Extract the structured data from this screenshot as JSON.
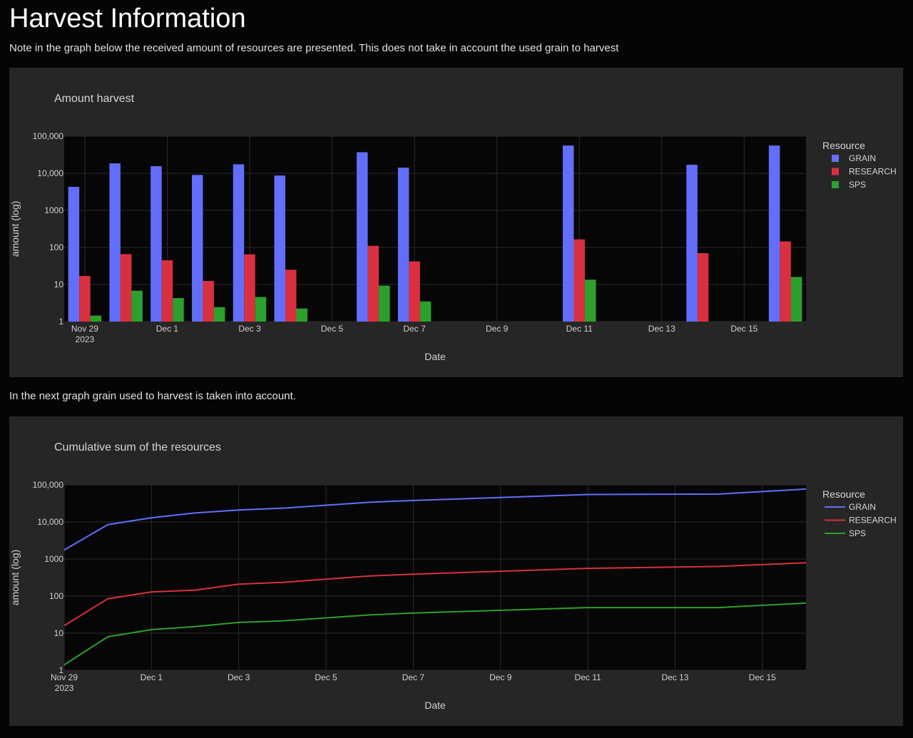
{
  "page": {
    "title": "Harvest Information",
    "note_1": "Note in the graph below the received amount of resources are presented. This does not take in account the used grain to harvest",
    "note_2": "In the next graph grain used to harvest is taken into account."
  },
  "colors": {
    "GRAIN": "#636efa",
    "RESEARCH": "#d9303f",
    "SPS": "#2ca02c",
    "plot_bg": "#060606",
    "paper_bg": "#262626"
  },
  "chart_data": [
    {
      "type": "bar",
      "title": "Amount harvest",
      "xlabel": "Date",
      "ylabel": "amount (log)",
      "y_scale": "log",
      "ylim": [
        1,
        100000
      ],
      "y_ticks": [
        {
          "value": 1,
          "label": "1"
        },
        {
          "value": 10,
          "label": "10"
        },
        {
          "value": 100,
          "label": "100"
        },
        {
          "value": 1000,
          "label": "1000"
        },
        {
          "value": 10000,
          "label": "10,000"
        },
        {
          "value": 100000,
          "label": "100,000"
        }
      ],
      "xlim": [
        "2023-11-28T12:00",
        "2023-12-16T12:00"
      ],
      "x_ticks": [
        {
          "date": "2023-11-29",
          "label": "Nov 29",
          "sublabel": "2023"
        },
        {
          "date": "2023-12-01",
          "label": "Dec 1"
        },
        {
          "date": "2023-12-03",
          "label": "Dec 3"
        },
        {
          "date": "2023-12-05",
          "label": "Dec 5"
        },
        {
          "date": "2023-12-07",
          "label": "Dec 7"
        },
        {
          "date": "2023-12-09",
          "label": "Dec 9"
        },
        {
          "date": "2023-12-11",
          "label": "Dec 11"
        },
        {
          "date": "2023-12-13",
          "label": "Dec 13"
        },
        {
          "date": "2023-12-15",
          "label": "Dec 15"
        }
      ],
      "x": [
        "2023-11-29",
        "2023-11-30",
        "2023-12-01",
        "2023-12-02",
        "2023-12-03",
        "2023-12-04",
        "2023-12-06",
        "2023-12-07",
        "2023-12-11",
        "2023-12-14",
        "2023-12-16"
      ],
      "legend_title": "Resource",
      "legend_position": "right",
      "grid": true,
      "series": [
        {
          "name": "GRAIN",
          "values": [
            4300,
            18500,
            15500,
            9000,
            17500,
            8700,
            37000,
            14200,
            56000,
            17000,
            56000
          ]
        },
        {
          "name": "RESEARCH",
          "values": [
            17,
            66,
            45,
            12.5,
            65,
            25,
            110,
            42,
            165,
            70,
            145
          ]
        },
        {
          "name": "SPS",
          "values": [
            1.45,
            6.8,
            4.3,
            2.45,
            4.6,
            2.25,
            9.3,
            3.5,
            13.5,
            null,
            16
          ]
        }
      ]
    },
    {
      "type": "line",
      "title": "Cumulative sum of the resources",
      "xlabel": "Date",
      "ylabel": "amount (log)",
      "y_scale": "log",
      "ylim": [
        1,
        100000
      ],
      "y_ticks": [
        {
          "value": 1,
          "label": "1"
        },
        {
          "value": 10,
          "label": "10"
        },
        {
          "value": 100,
          "label": "100"
        },
        {
          "value": 1000,
          "label": "1000"
        },
        {
          "value": 10000,
          "label": "10,000"
        },
        {
          "value": 100000,
          "label": "100,000"
        }
      ],
      "xlim": [
        "2023-11-29",
        "2023-12-16"
      ],
      "x_ticks": [
        {
          "date": "2023-11-29",
          "label": "Nov 29",
          "sublabel": "2023"
        },
        {
          "date": "2023-12-01",
          "label": "Dec 1"
        },
        {
          "date": "2023-12-03",
          "label": "Dec 3"
        },
        {
          "date": "2023-12-05",
          "label": "Dec 5"
        },
        {
          "date": "2023-12-07",
          "label": "Dec 7"
        },
        {
          "date": "2023-12-09",
          "label": "Dec 9"
        },
        {
          "date": "2023-12-11",
          "label": "Dec 11"
        },
        {
          "date": "2023-12-13",
          "label": "Dec 13"
        },
        {
          "date": "2023-12-15",
          "label": "Dec 15"
        }
      ],
      "x": [
        "2023-11-29",
        "2023-11-30",
        "2023-12-01",
        "2023-12-02",
        "2023-12-03",
        "2023-12-04",
        "2023-12-06",
        "2023-12-07",
        "2023-12-11",
        "2023-12-14",
        "2023-12-16"
      ],
      "legend_title": "Resource",
      "legend_position": "right",
      "grid": true,
      "series": [
        {
          "name": "GRAIN",
          "values": [
            1750,
            8500,
            13000,
            17500,
            21000,
            23500,
            34000,
            38000,
            55000,
            56500,
            77000
          ]
        },
        {
          "name": "RESEARCH",
          "values": [
            16,
            85,
            130,
            145,
            210,
            235,
            350,
            390,
            560,
            630,
            790
          ]
        },
        {
          "name": "SPS",
          "values": [
            1.4,
            8,
            12.5,
            15,
            19.5,
            21.5,
            31,
            35,
            49,
            49,
            65
          ]
        }
      ]
    }
  ]
}
